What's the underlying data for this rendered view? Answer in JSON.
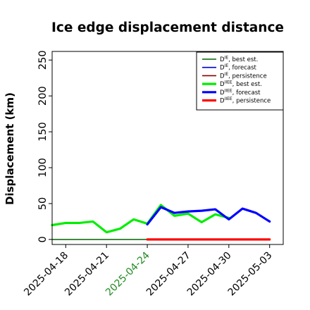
{
  "chart_data": {
    "type": "line",
    "title": "Ice edge displacement distance",
    "ylabel": "Displacement (km)",
    "xlabel": "",
    "ylim": [
      -7,
      262
    ],
    "xlim": [
      "2025-04-17",
      "2025-05-04"
    ],
    "yticks": [
      0,
      50,
      100,
      150,
      200,
      250
    ],
    "xticks": [
      {
        "label": "2025-04-18",
        "date": "2025-04-18",
        "color": "#000000"
      },
      {
        "label": "2025-04-21",
        "date": "2025-04-21",
        "color": "#000000"
      },
      {
        "label": "2025-04-24",
        "date": "2025-04-24",
        "color": "#228b22"
      },
      {
        "label": "2025-04-27",
        "date": "2025-04-27",
        "color": "#000000"
      },
      {
        "label": "2025-04-30",
        "date": "2025-04-30",
        "color": "#000000"
      },
      {
        "label": "2025-05-03",
        "date": "2025-05-03",
        "color": "#000000"
      }
    ],
    "grid": false,
    "legend_position": "top-right",
    "series": [
      {
        "name": "D^IE, best est.",
        "base": "D",
        "sup": "IE",
        "suffix": ", best est.",
        "color": "#006400",
        "width": 1.6,
        "x": [
          "2025-04-17",
          "2025-04-18",
          "2025-04-19",
          "2025-04-20",
          "2025-04-21",
          "2025-04-22",
          "2025-04-23",
          "2025-04-24"
        ],
        "y": [
          0,
          0,
          0,
          0,
          0,
          0,
          0,
          0
        ]
      },
      {
        "name": "D^IE, forecast",
        "base": "D",
        "sup": "IE",
        "suffix": ", forecast",
        "color": "#0000cd",
        "width": 1.6,
        "x": [
          "2025-04-24",
          "2025-04-25",
          "2025-04-26",
          "2025-04-27",
          "2025-04-28",
          "2025-04-29",
          "2025-04-30",
          "2025-05-01",
          "2025-05-02",
          "2025-05-03"
        ],
        "y": [
          0,
          0,
          0,
          0,
          0,
          0,
          0,
          0,
          0,
          0
        ]
      },
      {
        "name": "D^IE, persistence",
        "base": "D",
        "sup": "IE",
        "suffix": ", persistence",
        "color": "#8b0000",
        "width": 1.6,
        "x": [
          "2025-04-24",
          "2025-04-25",
          "2025-04-26",
          "2025-04-27",
          "2025-04-28",
          "2025-04-29",
          "2025-04-30",
          "2025-05-01",
          "2025-05-02",
          "2025-05-03"
        ],
        "y": [
          0,
          0,
          0,
          0,
          0,
          0,
          0,
          0,
          0,
          0
        ]
      },
      {
        "name": "D^IIEE, best est.",
        "base": "D",
        "sup": "IIEE",
        "suffix": ", best est.",
        "color": "#00ee00",
        "width": 3.2,
        "x": [
          "2025-04-17",
          "2025-04-18",
          "2025-04-19",
          "2025-04-20",
          "2025-04-21",
          "2025-04-22",
          "2025-04-23",
          "2025-04-24",
          "2025-04-25",
          "2025-04-26",
          "2025-04-27",
          "2025-04-28",
          "2025-04-29",
          "2025-04-30"
        ],
        "y": [
          20,
          23,
          23,
          25,
          10,
          15,
          28,
          22,
          48,
          33,
          36,
          24,
          35,
          30
        ]
      },
      {
        "name": "D^IIEE, forecast",
        "base": "D",
        "sup": "IIEE",
        "suffix": ", forecast",
        "color": "#0000ff",
        "width": 3.2,
        "x": [
          "2025-04-24",
          "2025-04-25",
          "2025-04-26",
          "2025-04-27",
          "2025-04-28",
          "2025-04-29",
          "2025-04-30",
          "2025-05-01",
          "2025-05-02",
          "2025-05-03"
        ],
        "y": [
          21,
          45,
          37,
          39,
          40,
          42,
          28,
          43,
          37,
          25
        ]
      },
      {
        "name": "D^IIEE, persistence",
        "base": "D",
        "sup": "IIEE",
        "suffix": ", persistence",
        "color": "#ff0000",
        "width": 3.2,
        "x": [
          "2025-04-24",
          "2025-05-03"
        ],
        "y": [
          0,
          0
        ]
      }
    ]
  }
}
